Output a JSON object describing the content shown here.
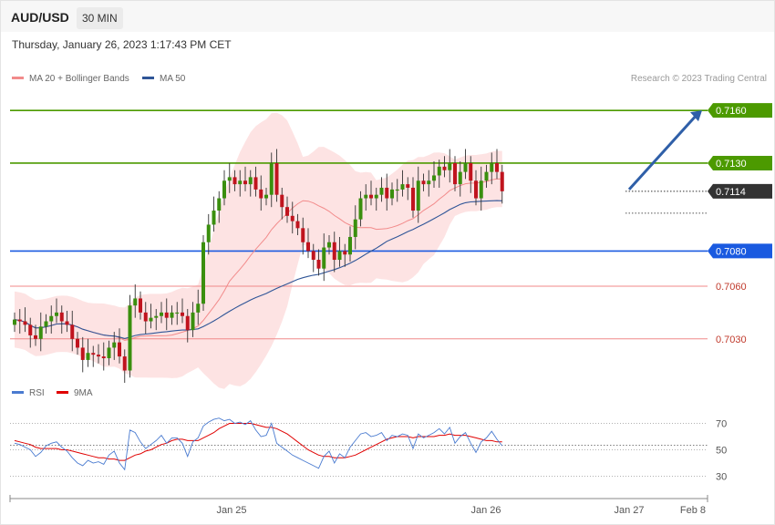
{
  "header": {
    "pair": "AUD/USD",
    "timeframe": "30 MIN"
  },
  "datetime": "Thursday, January 26, 2023 1:17:43 PM CET",
  "legend": {
    "ma20": {
      "label": "MA 20 + Bollinger Bands",
      "color": "#f28b8b"
    },
    "ma50": {
      "label": "MA 50",
      "color": "#2f5597"
    }
  },
  "credit": "Research © 2023 Trading Central",
  "rsi_legend": {
    "rsi": {
      "label": "RSI",
      "color": "#4a7bd0"
    },
    "ma9": {
      "label": "9MA",
      "color": "#e00000"
    }
  },
  "colors": {
    "green": "#4c9a00",
    "blue": "#1a5ae0",
    "red_line": "#f08a8a",
    "current": "#333333",
    "band": "#fde0e0",
    "arrow": "#2f5fa8"
  },
  "chart_data": [
    {
      "type": "candlestick",
      "title": "AUD/USD 30 MIN",
      "x_ticks": [
        "Jan 25",
        "Jan 26",
        "Jan 27",
        "Feb 8"
      ],
      "price_levels": [
        {
          "value": 0.716,
          "label": "0.7160",
          "role": "resistance-target",
          "color": "#4c9a00"
        },
        {
          "value": 0.713,
          "label": "0.7130",
          "role": "resistance",
          "color": "#4c9a00"
        },
        {
          "value": 0.7114,
          "label": "0.7114",
          "role": "current-price",
          "color": "#333333"
        },
        {
          "value": 0.708,
          "label": "0.7080",
          "role": "pivot",
          "color": "#1a5ae0"
        },
        {
          "value": 0.706,
          "label": "0.7060",
          "role": "support",
          "color": "#f08a8a"
        },
        {
          "value": 0.703,
          "label": "0.7030",
          "role": "support",
          "color": "#f08a8a"
        }
      ],
      "ylim": [
        0.7005,
        0.7172
      ],
      "close": [
        0.7041,
        0.704,
        0.7038,
        0.7032,
        0.703,
        0.7037,
        0.704,
        0.7043,
        0.7045,
        0.704,
        0.7038,
        0.703,
        0.7025,
        0.7018,
        0.7022,
        0.7021,
        0.702,
        0.7019,
        0.7025,
        0.7028,
        0.702,
        0.7012,
        0.7049,
        0.7053,
        0.7045,
        0.704,
        0.7042,
        0.7043,
        0.7045,
        0.7042,
        0.7045,
        0.7045,
        0.7043,
        0.7035,
        0.7045,
        0.705,
        0.7085,
        0.7095,
        0.7103,
        0.711,
        0.712,
        0.7122,
        0.7118,
        0.712,
        0.7118,
        0.7122,
        0.7115,
        0.711,
        0.7112,
        0.713,
        0.7112,
        0.7105,
        0.71,
        0.7097,
        0.7093,
        0.7085,
        0.708,
        0.7075,
        0.707,
        0.7082,
        0.7085,
        0.7075,
        0.708,
        0.7078,
        0.7088,
        0.7098,
        0.711,
        0.7112,
        0.711,
        0.7112,
        0.7116,
        0.711,
        0.7115,
        0.7115,
        0.7118,
        0.7116,
        0.7103,
        0.712,
        0.7118,
        0.712,
        0.7123,
        0.7128,
        0.7126,
        0.713,
        0.7118,
        0.7125,
        0.713,
        0.712,
        0.711,
        0.712,
        0.7125,
        0.713,
        0.7125,
        0.7114
      ]
    },
    {
      "type": "line",
      "title": "RSI",
      "series": [
        {
          "name": "RSI",
          "values": [
            55,
            54,
            52,
            50,
            45,
            48,
            53,
            55,
            56,
            52,
            49,
            44,
            40,
            38,
            42,
            40,
            41,
            39,
            46,
            49,
            40,
            35,
            65,
            63,
            56,
            51,
            54,
            57,
            61,
            55,
            59,
            59,
            55,
            45,
            56,
            59,
            68,
            71,
            73,
            74,
            72,
            73,
            70,
            71,
            69,
            72,
            65,
            60,
            61,
            70,
            55,
            52,
            49,
            46,
            44,
            42,
            40,
            38,
            36,
            45,
            49,
            40,
            47,
            44,
            52,
            57,
            62,
            63,
            60,
            61,
            63,
            57,
            61,
            60,
            62,
            61,
            51,
            62,
            59,
            61,
            63,
            66,
            62,
            67,
            55,
            60,
            63,
            55,
            48,
            56,
            59,
            64,
            58,
            53
          ]
        },
        {
          "name": "9MA",
          "values": [
            57,
            56,
            55,
            54,
            52,
            51,
            51,
            51,
            51,
            50,
            50,
            49,
            48,
            47,
            46,
            45,
            44,
            44,
            43,
            43,
            42,
            42,
            44,
            46,
            47,
            49,
            50,
            52,
            54,
            55,
            57,
            58,
            58,
            57,
            57,
            57,
            59,
            61,
            63,
            66,
            68,
            70,
            70,
            70,
            70,
            70,
            69,
            68,
            67,
            67,
            66,
            64,
            62,
            59,
            56,
            53,
            50,
            48,
            46,
            45,
            45,
            44,
            44,
            44,
            45,
            46,
            48,
            50,
            52,
            54,
            56,
            58,
            59,
            60,
            60,
            60,
            59,
            60,
            60,
            60,
            60,
            61,
            61,
            62,
            61,
            61,
            61,
            60,
            59,
            58,
            57,
            57,
            56,
            56
          ]
        }
      ],
      "ylim": [
        20,
        80
      ],
      "y_ticks": [
        "70",
        "50",
        "30"
      ]
    }
  ]
}
